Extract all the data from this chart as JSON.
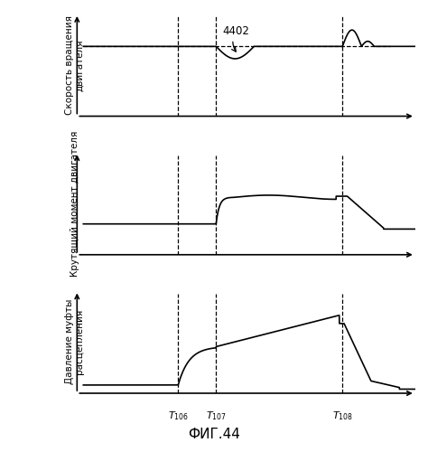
{
  "title": "ФИГ.44",
  "ylabel1": "Скорость вращения\nдвигателя",
  "ylabel2": "Крутящий момент двигателя",
  "ylabel3": "Давление муфты\nрасцепления",
  "t106": 0.3,
  "t107": 0.42,
  "t108": 0.82,
  "label_4402": "4402",
  "background_color": "#ffffff",
  "line_color": "#000000"
}
